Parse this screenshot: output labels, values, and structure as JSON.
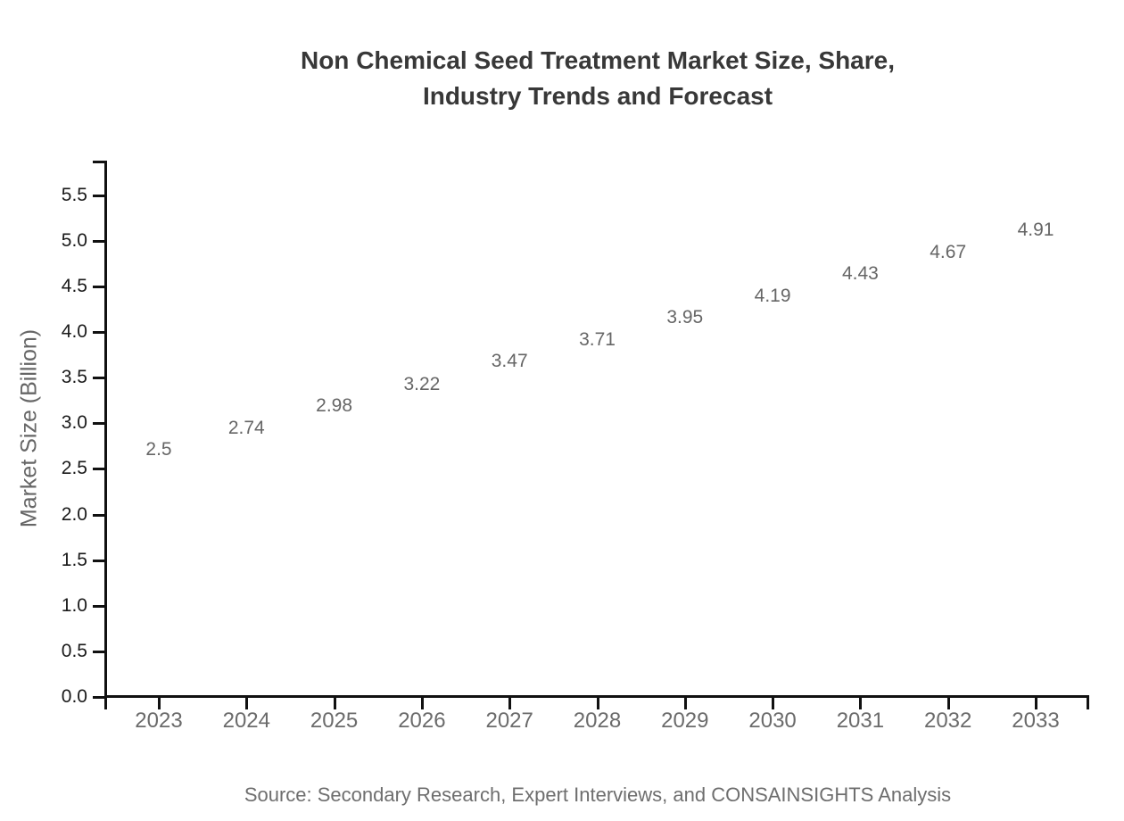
{
  "page": {
    "background": "#ffffff"
  },
  "title": {
    "line1": "Non Chemical Seed Treatment Market Size, Share,",
    "line2": "Industry Trends and Forecast"
  },
  "source_note": "Source: Secondary Research, Expert Interviews, and CONSAINSIGHTS Analysis",
  "chart_data": {
    "type": "bar",
    "title": "Non Chemical Seed Treatment Market Size, Share, Industry Trends and Forecast",
    "categories": [
      "2023",
      "2024",
      "2025",
      "2026",
      "2027",
      "2028",
      "2029",
      "2030",
      "2031",
      "2032",
      "2033"
    ],
    "values": [
      2.5,
      2.74,
      2.98,
      3.22,
      3.47,
      3.71,
      3.95,
      4.19,
      4.43,
      4.67,
      4.91
    ],
    "value_labels": [
      "2.5",
      "2.74",
      "2.98",
      "3.22",
      "3.47",
      "3.71",
      "3.95",
      "4.19",
      "4.43",
      "4.67",
      "4.91"
    ],
    "xlabel": "",
    "ylabel": "Market Size (Billion)",
    "ylim": [
      0,
      5.88
    ],
    "ytick_step": 0.5,
    "ytick_labels": [
      "0.0",
      "0.5",
      "1.0",
      "1.5",
      "2.0",
      "2.5",
      "3.0",
      "3.5",
      "4.0",
      "4.5",
      "5.0",
      "5.5"
    ],
    "grid": false,
    "legend": "none",
    "colors": {
      "bar_gradient_top": "#2590f4",
      "bar_gradient_bottom": "#485bd9",
      "axis": "#111111",
      "title_text": "#383838",
      "y_tick_text": "#1a1a1a",
      "x_tick_text": "#6b6b6b",
      "value_label_text": "#666666",
      "axis_title_text": "#666666",
      "source_text": "#6e6e6e"
    }
  }
}
